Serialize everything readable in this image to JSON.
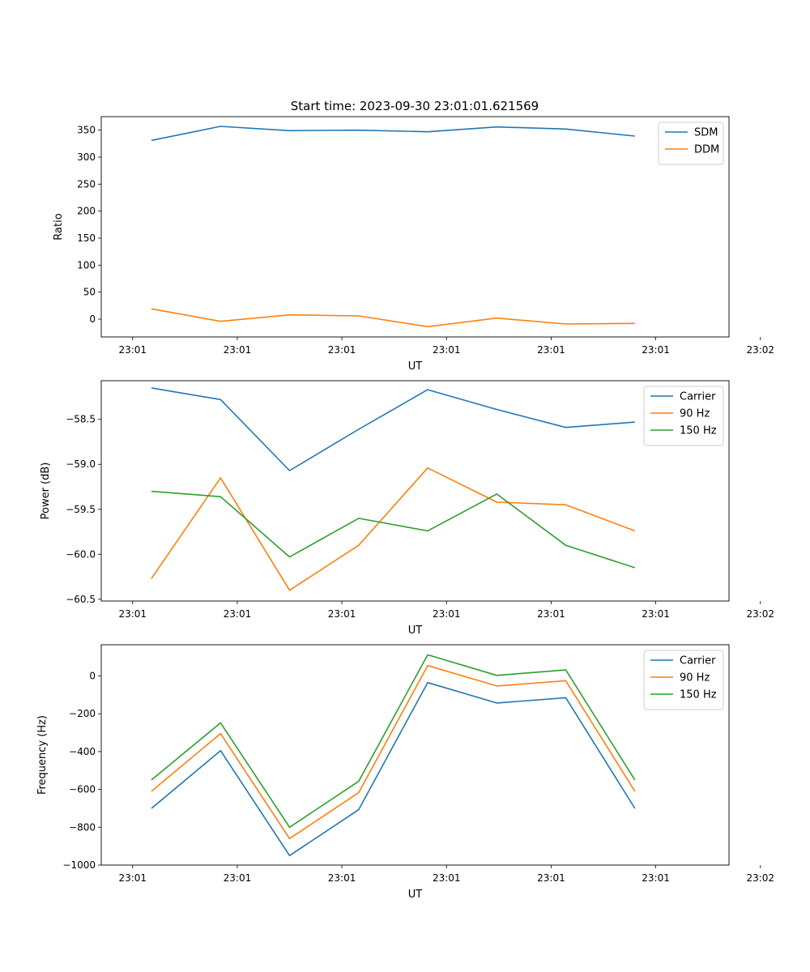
{
  "figure": {
    "title": "Start time: 2023-09-30 23:01:01.621569"
  },
  "colors": {
    "blue": "#1f77b4",
    "orange": "#ff7f0e",
    "green": "#2ca02c"
  },
  "chart_data": [
    {
      "type": "line",
      "id": "ratio",
      "title": "Start time: 2023-09-30 23:01:01.621569",
      "xlabel": "UT",
      "ylabel": "Ratio",
      "xlim": [
        -0.5,
        9.5
      ],
      "ylim": [
        -33,
        375
      ],
      "x": [
        0.3,
        1.4,
        2.5,
        3.6,
        4.7,
        5.8,
        6.9,
        8.0
      ],
      "xticks": [
        0,
        1.667,
        3.333,
        5,
        6.667,
        8.333,
        10
      ],
      "xticklabels": [
        "23:01",
        "23:01",
        "23:01",
        "23:01",
        "23:01",
        "23:01",
        "23:02"
      ],
      "yticks": [
        0,
        50,
        100,
        150,
        200,
        250,
        300,
        350
      ],
      "yticklabels": [
        "0",
        "50",
        "100",
        "150",
        "200",
        "250",
        "300",
        "350"
      ],
      "legend_position": "top-right",
      "series": [
        {
          "name": "SDM",
          "color": "#1f77b4",
          "values": [
            331,
            357,
            349,
            350,
            347,
            356,
            352,
            339
          ]
        },
        {
          "name": "DDM",
          "color": "#ff7f0e",
          "values": [
            19,
            -4,
            8,
            6,
            -14,
            2,
            -9,
            -8
          ]
        }
      ]
    },
    {
      "type": "line",
      "id": "power",
      "xlabel": "UT",
      "ylabel": "Power (dB)",
      "xlim": [
        -0.5,
        9.5
      ],
      "ylim": [
        -60.52,
        -58.07
      ],
      "x": [
        0.3,
        1.4,
        2.5,
        3.6,
        4.7,
        5.8,
        6.9,
        8.0
      ],
      "xticks": [
        0,
        1.667,
        3.333,
        5,
        6.667,
        8.333,
        10
      ],
      "xticklabels": [
        "23:01",
        "23:01",
        "23:01",
        "23:01",
        "23:01",
        "23:01",
        "23:02"
      ],
      "yticks": [
        -60.5,
        -60.0,
        -59.5,
        -59.0,
        -58.5
      ],
      "yticklabels": [
        "−60.5",
        "−60.0",
        "−59.5",
        "−59.0",
        "−58.5"
      ],
      "legend_position": "top-right",
      "series": [
        {
          "name": "Carrier",
          "color": "#1f77b4",
          "values": [
            -58.15,
            -58.28,
            -59.07,
            -58.61,
            -58.17,
            -58.39,
            -58.59,
            -58.53
          ]
        },
        {
          "name": "90 Hz",
          "color": "#ff7f0e",
          "values": [
            -60.27,
            -59.15,
            -60.4,
            -59.9,
            -59.04,
            -59.42,
            -59.45,
            -59.74
          ]
        },
        {
          "name": "150 Hz",
          "color": "#2ca02c",
          "values": [
            -59.3,
            -59.36,
            -60.03,
            -59.6,
            -59.74,
            -59.33,
            -59.9,
            -60.15
          ]
        }
      ]
    },
    {
      "type": "line",
      "id": "frequency",
      "xlabel": "UT",
      "ylabel": "Frequency (Hz)",
      "xlim": [
        -0.5,
        9.5
      ],
      "ylim": [
        -1000,
        165
      ],
      "x": [
        0.3,
        1.4,
        2.5,
        3.6,
        4.7,
        5.8,
        6.9,
        8.0
      ],
      "xticks": [
        0,
        1.667,
        3.333,
        5,
        6.667,
        8.333,
        10
      ],
      "xticklabels": [
        "23:01",
        "23:01",
        "23:01",
        "23:01",
        "23:01",
        "23:01",
        "23:02"
      ],
      "yticks": [
        -1000,
        -800,
        -600,
        -400,
        -200,
        0
      ],
      "yticklabels": [
        "−1000",
        "−800",
        "−600",
        "−400",
        "−200",
        "0"
      ],
      "legend_position": "top-right",
      "series": [
        {
          "name": "Carrier",
          "color": "#1f77b4",
          "values": [
            -700,
            -395,
            -950,
            -707,
            -35,
            -143,
            -115,
            -700
          ]
        },
        {
          "name": "90 Hz",
          "color": "#ff7f0e",
          "values": [
            -610,
            -305,
            -860,
            -617,
            55,
            -53,
            -25,
            -610
          ]
        },
        {
          "name": "150 Hz",
          "color": "#2ca02c",
          "values": [
            -550,
            -248,
            -800,
            -557,
            112,
            3,
            32,
            -550
          ]
        }
      ]
    }
  ]
}
